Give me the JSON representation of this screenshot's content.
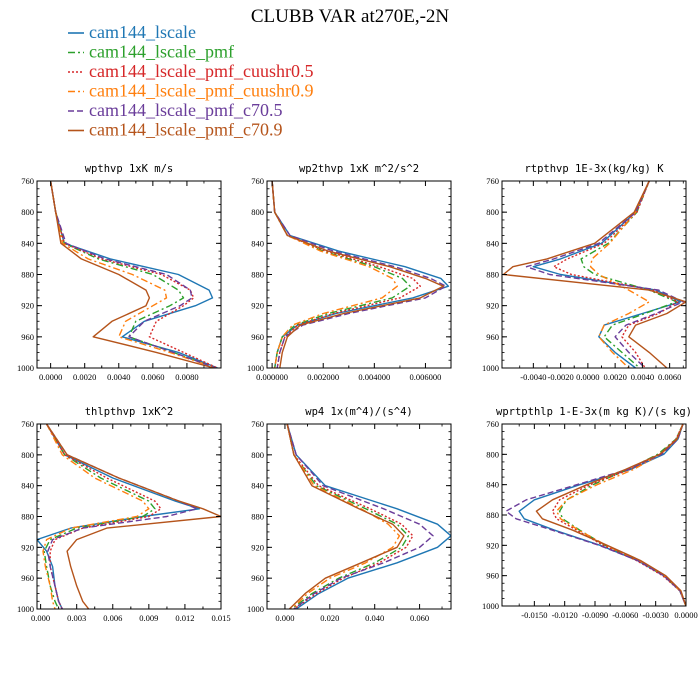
{
  "title": "CLUBB VAR at270E,-2N",
  "legend": [
    {
      "label": "cam144_lscale",
      "color": "#1f77b4",
      "dash": "solid"
    },
    {
      "label": "cam144_lscale_pmf",
      "color": "#2ca02c",
      "dash": "dashdot"
    },
    {
      "label": "cam144_lscale_pmf_cuushr0.5",
      "color": "#d62728",
      "dash": "dotted"
    },
    {
      "label": "cam144_lscale_pmf_cuushr0.9",
      "color": "#ff7f0e",
      "dash": "dashdot"
    },
    {
      "label": "cam144_lscale_pmf_c70.5",
      "color": "#6a3d9a",
      "dash": "dashed"
    },
    {
      "label": "cam144_lscale_pmf_c70.9",
      "color": "#b5541b",
      "dash": "solid"
    }
  ],
  "chart_data": [
    {
      "type": "line",
      "title": "wpthvp  1xK m/s",
      "xlim": [
        -0.0008,
        0.01
      ],
      "ylim": [
        760,
        1000
      ],
      "xticks": [
        0.0,
        0.002,
        0.004,
        0.006,
        0.008
      ],
      "xtick_labels": [
        "0.0000",
        "0.0020",
        "0.0040",
        "0.0060",
        "0.0080"
      ],
      "yticks": [
        760,
        800,
        840,
        880,
        920,
        960,
        1000
      ],
      "y": [
        760,
        800,
        840,
        860,
        880,
        900,
        910,
        920,
        940,
        960,
        980,
        1000
      ],
      "series": [
        {
          "name": "cam144_lscale",
          "x": [
            0.0,
            0.0003,
            0.0008,
            0.0035,
            0.0075,
            0.0093,
            0.0095,
            0.0085,
            0.0055,
            0.0042,
            0.0075,
            0.0098
          ]
        },
        {
          "name": "cam144_lscale_pmf",
          "x": [
            0.0,
            0.0003,
            0.0008,
            0.0028,
            0.006,
            0.0075,
            0.0078,
            0.007,
            0.005,
            0.0046,
            0.0072,
            0.0097
          ]
        },
        {
          "name": "cam144_lscale_pmf_cuushr0.5",
          "x": [
            0.0,
            0.0003,
            0.0008,
            0.003,
            0.0065,
            0.0082,
            0.0084,
            0.0078,
            0.0062,
            0.0058,
            0.0078,
            0.0098
          ]
        },
        {
          "name": "cam144_lscale_pmf_cuushr0.9",
          "x": [
            0.0,
            0.0003,
            0.0007,
            0.0022,
            0.0048,
            0.0067,
            0.0068,
            0.006,
            0.0044,
            0.004,
            0.007,
            0.0097
          ]
        },
        {
          "name": "cam144_lscale_pmf_c70.5",
          "x": [
            0.0,
            0.0003,
            0.0009,
            0.0032,
            0.0068,
            0.0082,
            0.0083,
            0.0076,
            0.0055,
            0.0046,
            0.0072,
            0.0097
          ]
        },
        {
          "name": "cam144_lscale_pmf_c70.9",
          "x": [
            0.0,
            0.0003,
            0.0006,
            0.0018,
            0.004,
            0.0056,
            0.0058,
            0.0056,
            0.0036,
            0.0025,
            0.0062,
            0.0096
          ]
        }
      ]
    },
    {
      "type": "line",
      "title": "wp2thvp  1xK m^2/s^2",
      "xlim": [
        -0.0002,
        0.007
      ],
      "ylim": [
        760,
        1000
      ],
      "xticks": [
        0.0,
        0.002,
        0.004,
        0.006
      ],
      "xtick_labels": [
        "0.000000",
        "0.002000",
        "0.004000",
        "0.006000"
      ],
      "yticks": [
        760,
        800,
        840,
        880,
        920,
        960,
        1000
      ],
      "y": [
        760,
        800,
        830,
        850,
        870,
        885,
        895,
        910,
        930,
        945,
        960,
        980,
        1000
      ],
      "series": [
        {
          "name": "cam144_lscale",
          "x": [
            0.0,
            0.0001,
            0.0007,
            0.0026,
            0.0052,
            0.0066,
            0.0069,
            0.0055,
            0.0025,
            0.001,
            0.0004,
            0.0002,
            0.0001
          ]
        },
        {
          "name": "cam144_lscale_pmf",
          "x": [
            0.0,
            0.0001,
            0.0006,
            0.002,
            0.004,
            0.0051,
            0.0054,
            0.0047,
            0.0022,
            0.0009,
            0.0004,
            0.0002,
            0.0001
          ]
        },
        {
          "name": "cam144_lscale_pmf_cuushr0.5",
          "x": [
            0.0,
            0.0001,
            0.0006,
            0.0021,
            0.0042,
            0.0055,
            0.0058,
            0.005,
            0.0024,
            0.001,
            0.0005,
            0.0003,
            0.0002
          ]
        },
        {
          "name": "cam144_lscale_pmf_cuushr0.9",
          "x": [
            0.0,
            0.0001,
            0.0006,
            0.0019,
            0.0038,
            0.0047,
            0.0049,
            0.0043,
            0.002,
            0.0008,
            0.0004,
            0.0002,
            0.0001
          ]
        },
        {
          "name": "cam144_lscale_pmf_c70.5",
          "x": [
            0.0,
            0.0001,
            0.0007,
            0.0024,
            0.0048,
            0.0062,
            0.0068,
            0.006,
            0.003,
            0.0012,
            0.0005,
            0.0003,
            0.0002
          ]
        },
        {
          "name": "cam144_lscale_pmf_c70.9",
          "x": [
            0.0,
            0.0001,
            0.0006,
            0.0022,
            0.0046,
            0.006,
            0.0067,
            0.0058,
            0.0028,
            0.0011,
            0.0006,
            0.0004,
            0.0003
          ]
        }
      ]
    },
    {
      "type": "line",
      "title": "rtpthvp  1E-3x(kg/kg) K",
      "xlim": [
        -0.0063,
        0.0072
      ],
      "ylim": [
        760,
        1000
      ],
      "xticks": [
        -0.004,
        -0.002,
        0.0,
        0.002,
        0.004,
        0.006
      ],
      "xtick_labels": [
        "-0.0040",
        "-0.0020",
        "0.0000",
        "0.0020",
        "0.0040",
        "0.0060"
      ],
      "yticks": [
        760,
        800,
        840,
        880,
        920,
        960,
        1000
      ],
      "y": [
        760,
        800,
        840,
        860,
        870,
        880,
        900,
        915,
        930,
        945,
        960,
        980,
        1000
      ],
      "series": [
        {
          "name": "cam144_lscale",
          "x": [
            0.0045,
            0.0035,
            0.001,
            -0.002,
            -0.004,
            -0.002,
            0.005,
            0.0068,
            0.004,
            0.0012,
            0.0008,
            0.002,
            0.0035
          ]
        },
        {
          "name": "cam144_lscale_pmf",
          "x": [
            0.0045,
            0.0036,
            0.0015,
            -0.0005,
            -0.0003,
            0.0005,
            0.0045,
            0.0065,
            0.0042,
            0.0018,
            0.0012,
            0.0025,
            0.0038
          ]
        },
        {
          "name": "cam144_lscale_pmf_cuushr0.5",
          "x": [
            0.0045,
            0.0036,
            0.0012,
            -0.0015,
            -0.0025,
            -0.0012,
            0.0048,
            0.0066,
            0.0052,
            0.003,
            0.0025,
            0.0035,
            0.0042
          ]
        },
        {
          "name": "cam144_lscale_pmf_cuushr0.9",
          "x": [
            0.0045,
            0.0035,
            0.0016,
            0.0003,
            0.0002,
            0.0008,
            0.003,
            0.0045,
            0.003,
            0.0012,
            0.0008,
            0.0018,
            0.003
          ]
        },
        {
          "name": "cam144_lscale_pmf_c70.5",
          "x": [
            0.0045,
            0.0035,
            0.0008,
            -0.0025,
            -0.0045,
            -0.0028,
            0.0052,
            0.007,
            0.005,
            0.0028,
            0.002,
            0.003,
            0.0042
          ]
        },
        {
          "name": "cam144_lscale_pmf_c70.9",
          "x": [
            0.0045,
            0.0034,
            0.0005,
            -0.003,
            -0.0055,
            -0.0062,
            0.0045,
            0.0072,
            0.0058,
            0.0035,
            0.003,
            0.0045,
            0.0058
          ]
        }
      ]
    },
    {
      "type": "line",
      "title": "thlpthvp  1xK^2",
      "xlim": [
        -0.0003,
        0.015
      ],
      "ylim": [
        760,
        1000
      ],
      "xticks": [
        0.0,
        0.003,
        0.006,
        0.009,
        0.012,
        0.015
      ],
      "xtick_labels": [
        "0.000",
        "0.003",
        "0.006",
        "0.009",
        "0.012",
        "0.015"
      ],
      "yticks": [
        760,
        800,
        840,
        880,
        920,
        960,
        1000
      ],
      "y": [
        760,
        800,
        830,
        860,
        870,
        880,
        895,
        910,
        925,
        945,
        970,
        990,
        1000
      ],
      "series": [
        {
          "name": "cam144_lscale",
          "x": [
            0.0005,
            0.002,
            0.006,
            0.0112,
            0.0132,
            0.0085,
            0.0025,
            -0.0003,
            0.0005,
            0.001,
            0.0012,
            0.0015,
            0.0018
          ]
        },
        {
          "name": "cam144_lscale_pmf",
          "x": [
            0.0005,
            0.002,
            0.005,
            0.009,
            0.0095,
            0.0085,
            0.003,
            0.0008,
            0.0003,
            0.0005,
            0.0008,
            0.0012,
            0.0015
          ]
        },
        {
          "name": "cam144_lscale_pmf_cuushr0.5",
          "x": [
            0.0005,
            0.002,
            0.0055,
            0.0095,
            0.01,
            0.009,
            0.0035,
            0.0012,
            0.0008,
            0.0008,
            0.0012,
            0.0015,
            0.0018
          ]
        },
        {
          "name": "cam144_lscale_pmf_cuushr0.9",
          "x": [
            0.0005,
            0.0018,
            0.0045,
            0.0085,
            0.009,
            0.008,
            0.0025,
            0.0005,
            0.0002,
            0.0004,
            0.0008,
            0.001,
            0.0012
          ]
        },
        {
          "name": "cam144_lscale_pmf_c70.5",
          "x": [
            0.0005,
            0.0022,
            0.0065,
            0.0115,
            0.013,
            0.0105,
            0.0035,
            0.001,
            0.0006,
            0.0008,
            0.0012,
            0.0015,
            0.0018
          ]
        },
        {
          "name": "cam144_lscale_pmf_c70.9",
          "x": [
            0.0005,
            0.0022,
            0.0065,
            0.0115,
            0.0135,
            0.015,
            0.0055,
            0.003,
            0.0022,
            0.0025,
            0.003,
            0.0035,
            0.004
          ]
        }
      ]
    },
    {
      "type": "line",
      "title": "wp4  1x(m^4)/(s^4)",
      "xlim": [
        -0.008,
        0.074
      ],
      "ylim": [
        760,
        1000
      ],
      "xticks": [
        0.0,
        0.02,
        0.04,
        0.06
      ],
      "xtick_labels": [
        "0.000",
        "0.020",
        "0.040",
        "0.060"
      ],
      "yticks": [
        760,
        800,
        840,
        880,
        920,
        960,
        1000
      ],
      "y": [
        760,
        800,
        840,
        870,
        890,
        905,
        920,
        940,
        960,
        980,
        1000
      ],
      "series": [
        {
          "name": "cam144_lscale",
          "x": [
            0.001,
            0.005,
            0.018,
            0.05,
            0.068,
            0.074,
            0.068,
            0.05,
            0.028,
            0.015,
            0.005
          ]
        },
        {
          "name": "cam144_lscale_pmf",
          "x": [
            0.001,
            0.004,
            0.014,
            0.036,
            0.05,
            0.055,
            0.052,
            0.04,
            0.024,
            0.012,
            0.003
          ]
        },
        {
          "name": "cam144_lscale_pmf_cuushr0.5",
          "x": [
            0.001,
            0.004,
            0.015,
            0.038,
            0.052,
            0.057,
            0.054,
            0.042,
            0.026,
            0.014,
            0.004
          ]
        },
        {
          "name": "cam144_lscale_pmf_cuushr0.9",
          "x": [
            0.001,
            0.004,
            0.013,
            0.034,
            0.046,
            0.051,
            0.048,
            0.036,
            0.02,
            0.01,
            0.003
          ]
        },
        {
          "name": "cam144_lscale_pmf_c70.5",
          "x": [
            0.001,
            0.005,
            0.017,
            0.044,
            0.06,
            0.066,
            0.06,
            0.044,
            0.025,
            0.013,
            0.004
          ]
        },
        {
          "name": "cam144_lscale_pmf_c70.9",
          "x": [
            0.001,
            0.004,
            0.012,
            0.033,
            0.048,
            0.053,
            0.05,
            0.034,
            0.018,
            0.009,
            0.002
          ]
        }
      ]
    },
    {
      "type": "line",
      "title": "wprtpthlp  1-E-3x(m kg K)/(s kg)",
      "xlim": [
        -0.0182,
        0.0
      ],
      "ylim": [
        760,
        1000
      ],
      "xticks": [
        -0.015,
        -0.012,
        -0.009,
        -0.006,
        -0.003,
        0.0
      ],
      "xtick_labels": [
        "-0.0150",
        "-0.0120",
        "-0.0090",
        "-0.0060",
        "-0.0030",
        "0.0000"
      ],
      "yticks": [
        760,
        800,
        840,
        880,
        920,
        960,
        1000
      ],
      "y": [
        760,
        780,
        800,
        820,
        840,
        860,
        875,
        885,
        900,
        920,
        940,
        960,
        980,
        1000
      ],
      "series": [
        {
          "name": "cam144_lscale",
          "x": [
            -0.0003,
            -0.0008,
            -0.0022,
            -0.0055,
            -0.0105,
            -0.015,
            -0.0165,
            -0.016,
            -0.013,
            -0.0085,
            -0.0048,
            -0.0022,
            -0.0006,
            0.0
          ]
        },
        {
          "name": "cam144_lscale_pmf",
          "x": [
            -0.0003,
            -0.001,
            -0.0028,
            -0.0058,
            -0.0092,
            -0.0118,
            -0.0125,
            -0.0122,
            -0.0105,
            -0.008,
            -0.0048,
            -0.0022,
            -0.0006,
            0.0
          ]
        },
        {
          "name": "cam144_lscale_pmf_cuushr0.5",
          "x": [
            -0.0003,
            -0.001,
            -0.0026,
            -0.0056,
            -0.0095,
            -0.0125,
            -0.0132,
            -0.0128,
            -0.0108,
            -0.0082,
            -0.0049,
            -0.0023,
            -0.0006,
            0.0
          ]
        },
        {
          "name": "cam144_lscale_pmf_cuushr0.9",
          "x": [
            -0.0003,
            -0.0009,
            -0.0025,
            -0.0052,
            -0.0088,
            -0.0118,
            -0.0128,
            -0.0124,
            -0.0106,
            -0.0079,
            -0.0046,
            -0.0021,
            -0.0006,
            0.0
          ]
        },
        {
          "name": "cam144_lscale_pmf_c70.5",
          "x": [
            -0.0003,
            -0.0008,
            -0.0024,
            -0.0058,
            -0.0108,
            -0.0158,
            -0.0178,
            -0.0168,
            -0.0132,
            -0.0086,
            -0.0048,
            -0.0022,
            -0.0006,
            0.0
          ]
        },
        {
          "name": "cam144_lscale_pmf_c70.9",
          "x": [
            -0.0003,
            -0.0009,
            -0.0026,
            -0.006,
            -0.0098,
            -0.0132,
            -0.0148,
            -0.0142,
            -0.0112,
            -0.0078,
            -0.0045,
            -0.002,
            -0.0005,
            0.0
          ]
        }
      ]
    }
  ]
}
